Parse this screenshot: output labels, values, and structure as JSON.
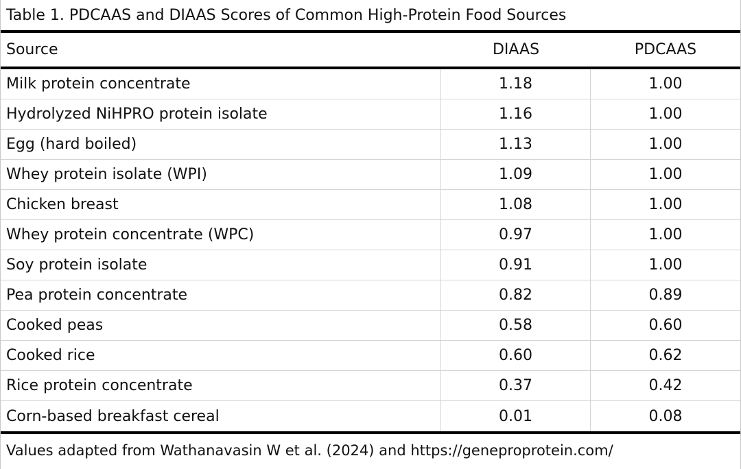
{
  "table": {
    "caption": "Table 1. PDCAAS and DIAAS Scores of Common High-Protein Food Sources",
    "headers": {
      "source": "Source",
      "diaas": "DIAAS",
      "pdcaas": "PDCAAS"
    },
    "rows": [
      {
        "source": "Milk protein concentrate",
        "diaas": "1.18",
        "pdcaas": "1.00"
      },
      {
        "source": "Hydrolyzed NiHPRO protein isolate",
        "diaas": "1.16",
        "pdcaas": "1.00"
      },
      {
        "source": "Egg (hard boiled)",
        "diaas": "1.13",
        "pdcaas": "1.00"
      },
      {
        "source": "Whey protein isolate (WPI)",
        "diaas": "1.09",
        "pdcaas": "1.00"
      },
      {
        "source": "Chicken breast",
        "diaas": "1.08",
        "pdcaas": "1.00"
      },
      {
        "source": "Whey protein concentrate (WPC)",
        "diaas": "0.97",
        "pdcaas": "1.00"
      },
      {
        "source": "Soy protein isolate",
        "diaas": "0.91",
        "pdcaas": "1.00"
      },
      {
        "source": "Pea protein concentrate",
        "diaas": "0.82",
        "pdcaas": "0.89"
      },
      {
        "source": "Cooked peas",
        "diaas": "0.58",
        "pdcaas": "0.60"
      },
      {
        "source": "Cooked rice",
        "diaas": "0.60",
        "pdcaas": "0.62"
      },
      {
        "source": "Rice protein concentrate",
        "diaas": "0.37",
        "pdcaas": "0.42"
      },
      {
        "source": "Corn-based breakfast cereal",
        "diaas": "0.01",
        "pdcaas": "0.08"
      }
    ],
    "footnote": "Values adapted from Wathanavasin W et al. (2024) and https://geneproprotein.com/"
  }
}
